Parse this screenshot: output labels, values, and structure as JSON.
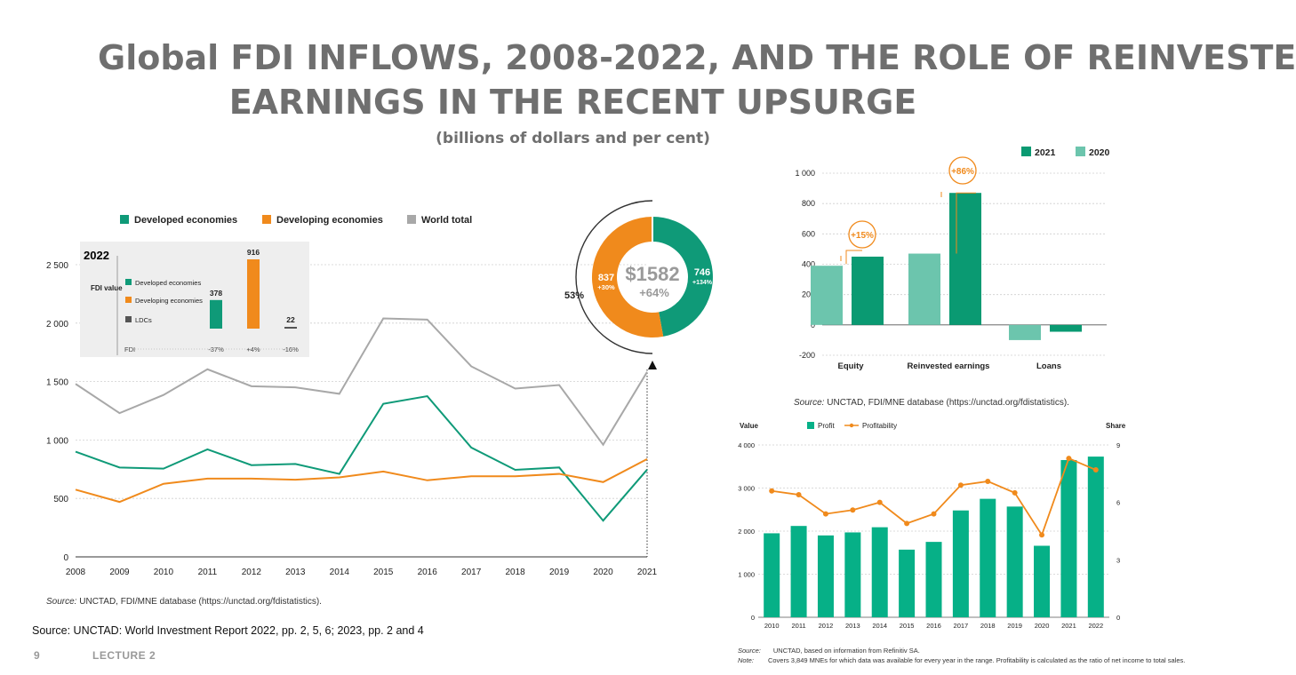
{
  "title_line1": "Global FDI INFLOWS, 2008-2022, AND THE ROLE OF REINVESTE",
  "title_line2": "EARNINGS IN THE RECENT UPSURGE",
  "subtitle": "(billions of dollars and per cent)",
  "footer_source": "Source: UNCTAD: World Investment Report 2022, pp. 2, 5, 6; 2023, pp. 2 and 4",
  "page_number": "9",
  "lecture_label": "LECTURE 2",
  "colors": {
    "developed": "#0f9a78",
    "developing": "#f08a1c",
    "world": "#a8a8a8",
    "teal2021": "#0a9a72",
    "teal2020": "#6cc5ad",
    "profit": "#06b087",
    "profitability": "#f08a1c"
  },
  "chart_data": [
    {
      "type": "line",
      "x": [
        "2008",
        "2009",
        "2010",
        "2011",
        "2012",
        "2013",
        "2014",
        "2015",
        "2016",
        "2017",
        "2018",
        "2019",
        "2020",
        "2021"
      ],
      "ylim": [
        0,
        2500
      ],
      "yticks": [
        "0",
        "500",
        "1 000",
        "1 500",
        "2 000",
        "2 500"
      ],
      "series": [
        {
          "name": "Developed economies",
          "values": [
            900,
            765,
            755,
            920,
            785,
            795,
            710,
            1310,
            1375,
            935,
            745,
            765,
            310,
            746
          ]
        },
        {
          "name": "Developing economies",
          "values": [
            575,
            470,
            625,
            670,
            670,
            660,
            680,
            730,
            655,
            690,
            690,
            710,
            640,
            837
          ]
        },
        {
          "name": "World total",
          "values": [
            1480,
            1230,
            1385,
            1605,
            1460,
            1450,
            1395,
            2040,
            2030,
            1630,
            1440,
            1470,
            960,
            1582
          ]
        }
      ],
      "source": "UNCTAD, FDI/MNE database (https://unctad.org/fdistatistics).",
      "source_label": "Source:"
    },
    {
      "type": "bar",
      "inset_title": "2022",
      "axis_label": "FDI value",
      "legend": [
        "Developed economies",
        "Developing economies",
        "LDCs"
      ],
      "categories": [
        "Developed economies",
        "Developing economies",
        "LDCs"
      ],
      "values": [
        378,
        916,
        22
      ],
      "row_label": "FDI",
      "growth": [
        "-37%",
        "+4%",
        "-16%"
      ]
    },
    {
      "type": "pie",
      "center_value": "$1582",
      "center_growth": "+64%",
      "outer_share": "53%",
      "slices": [
        {
          "label": "837",
          "growth": "+30%",
          "value": 837
        },
        {
          "label": "746",
          "growth": "+134%",
          "value": 746
        }
      ]
    },
    {
      "type": "bar",
      "categories": [
        "Equity",
        "Reinvested earnings",
        "Loans"
      ],
      "series": [
        {
          "name": "2021",
          "values": [
            450,
            870,
            -45
          ]
        },
        {
          "name": "2020",
          "values": [
            390,
            470,
            -100
          ]
        }
      ],
      "ylim": [
        -200,
        1000
      ],
      "yticks": [
        "-200",
        "0",
        "200",
        "400",
        "600",
        "800",
        "1 000"
      ],
      "annotations": [
        "+15%",
        "+86%"
      ],
      "source_label": "Source:",
      "source": "UNCTAD, FDI/MNE database (https://unctad.org/fdistatistics)."
    },
    {
      "type": "bar",
      "categories": [
        "2010",
        "2011",
        "2012",
        "2013",
        "2014",
        "2015",
        "2016",
        "2017",
        "2018",
        "2019",
        "2020",
        "2021",
        "2022"
      ],
      "series": [
        {
          "name": "Profit",
          "values": [
            1950,
            2120,
            1900,
            1970,
            2090,
            1570,
            1750,
            2480,
            2750,
            2570,
            1660,
            3650,
            3730
          ]
        },
        {
          "name": "Profitability",
          "values": [
            6.6,
            6.4,
            5.4,
            5.6,
            6.0,
            4.9,
            5.4,
            6.9,
            7.1,
            6.5,
            4.3,
            8.3,
            7.7
          ]
        }
      ],
      "ylabel": "Value",
      "y2label": "Share",
      "ylim": [
        0,
        4000
      ],
      "y2lim": [
        0,
        9
      ],
      "yticks": [
        "0",
        "1 000",
        "2 000",
        "3 000",
        "4 000"
      ],
      "y2ticks": [
        "0",
        "3",
        "6",
        "9"
      ],
      "source_label": "Source:",
      "source": "UNCTAD, based on information from Refinitiv SA.",
      "note_label": "Note:",
      "note": "Covers 3,849 MNEs for which data was available for every year in the range. Profitability is calculated as the ratio of net income to total sales."
    }
  ]
}
